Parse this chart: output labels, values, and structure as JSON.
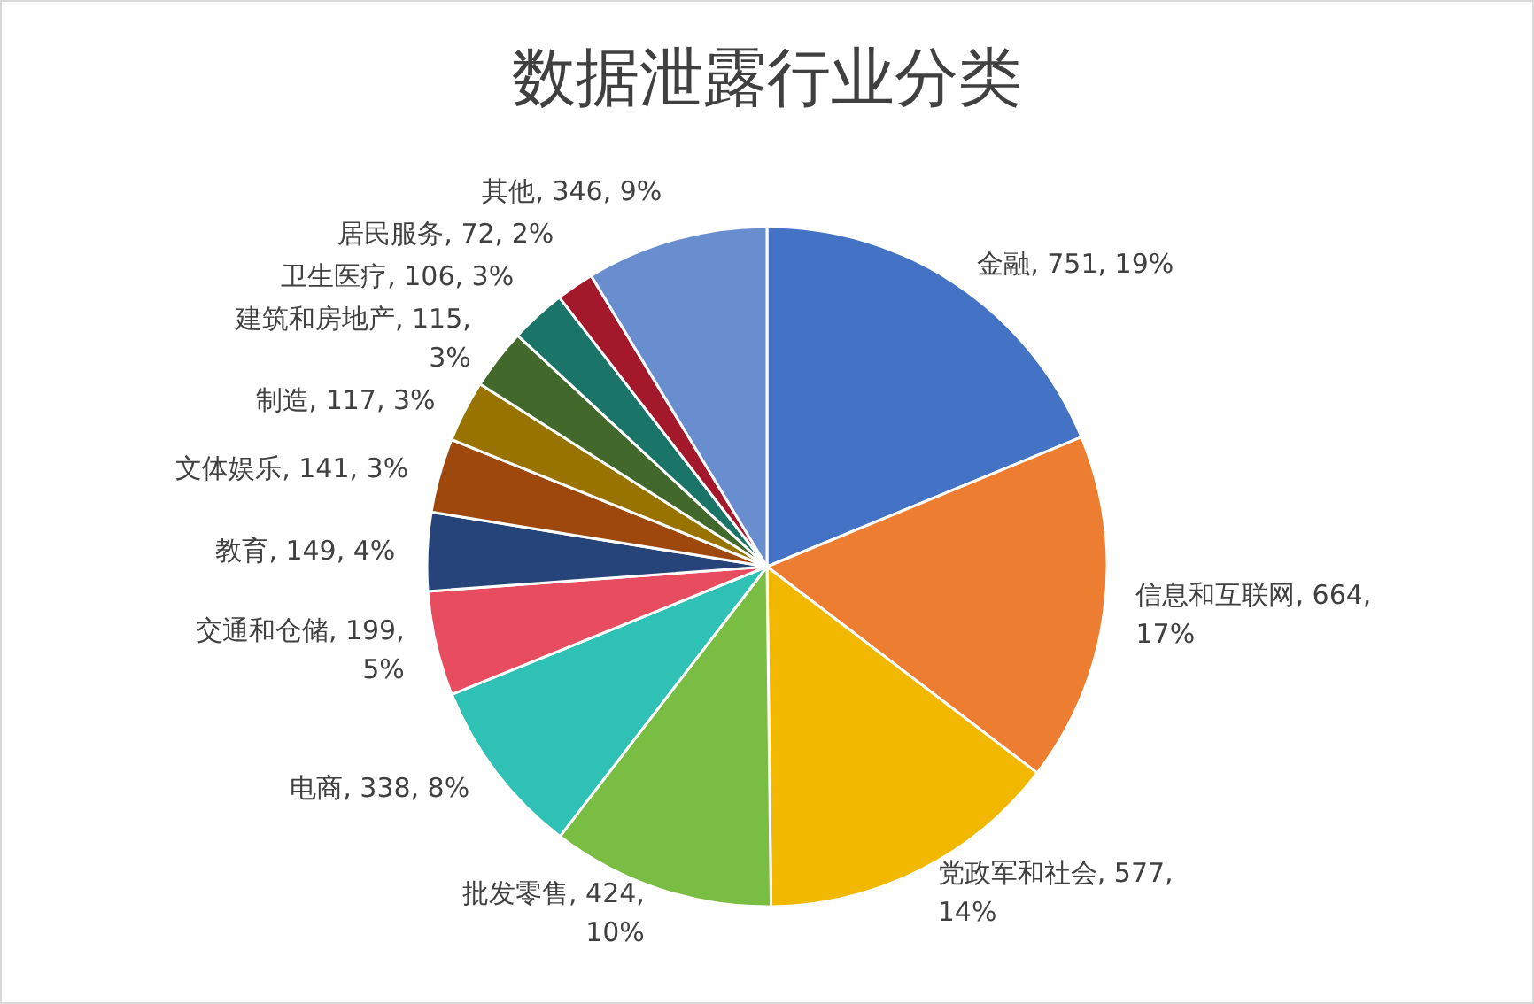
{
  "chart_data": {
    "type": "pie",
    "title": "数据泄露行业分类",
    "categories": [
      "金融",
      "信息和互联网",
      "党政军和社会",
      "批发零售",
      "电商",
      "交通和仓储",
      "教育",
      "文体娱乐",
      "制造",
      "建筑和房地产",
      "卫生医疗",
      "居民服务",
      "其他"
    ],
    "values": [
      751,
      664,
      577,
      424,
      338,
      199,
      149,
      141,
      117,
      115,
      106,
      72,
      346
    ],
    "value_labels": [
      "751, 19%",
      "664, 17%",
      "577, 14%",
      "424, 10%",
      "338, 8%",
      "199, 5%",
      "149, 4%",
      "141, 3%",
      "117, 3%",
      "115, 3%",
      "106, 3%",
      "72, 2%",
      "346, 9%"
    ],
    "colors": [
      "#4472c4",
      "#ed7d31",
      "#f2b800",
      "#7abd43",
      "#2fc1b5",
      "#e84c5f",
      "#264478",
      "#9e480e",
      "#997300",
      "#43682b",
      "#1b7468",
      "#a3182a",
      "#698ed0"
    ]
  }
}
